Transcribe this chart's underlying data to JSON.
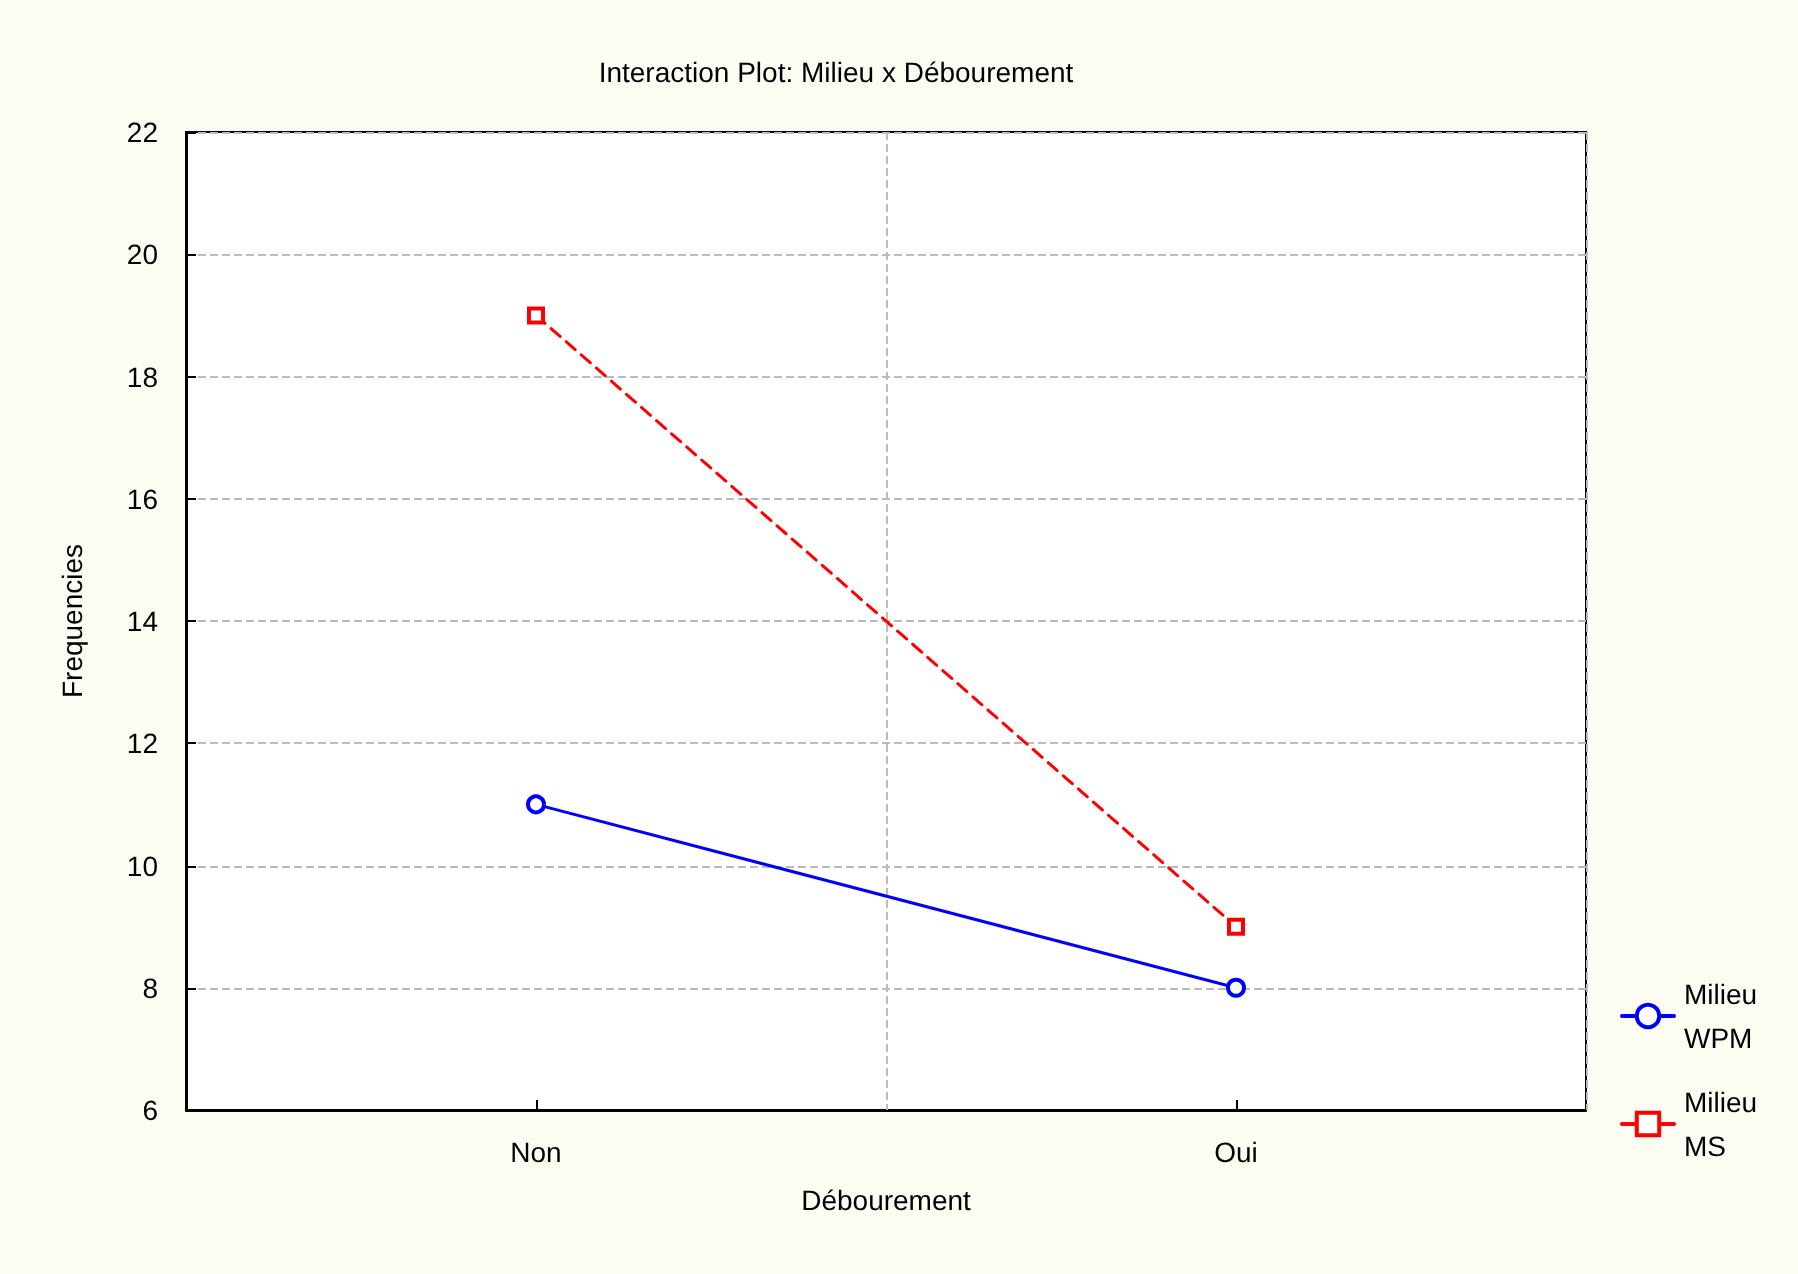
{
  "chart_data": {
    "type": "line",
    "title": "Interaction Plot: Milieu x Débourement",
    "xlabel": "Débourement",
    "ylabel": "Frequencies",
    "categories": [
      "Non",
      "Oui"
    ],
    "series": [
      {
        "name": "Milieu WPM",
        "color": "#0000ff",
        "values": [
          11,
          8
        ],
        "marker": "circle",
        "line_style": "solid"
      },
      {
        "name": "Milieu MS",
        "color": "#ff0000",
        "values": [
          19,
          9
        ],
        "marker": "square",
        "line_style": "dashed"
      }
    ],
    "ylim": [
      6,
      22
    ],
    "yticks": [
      6,
      8,
      10,
      12,
      14,
      16,
      18,
      20,
      22
    ],
    "grid": true,
    "legend": "bottom right"
  }
}
